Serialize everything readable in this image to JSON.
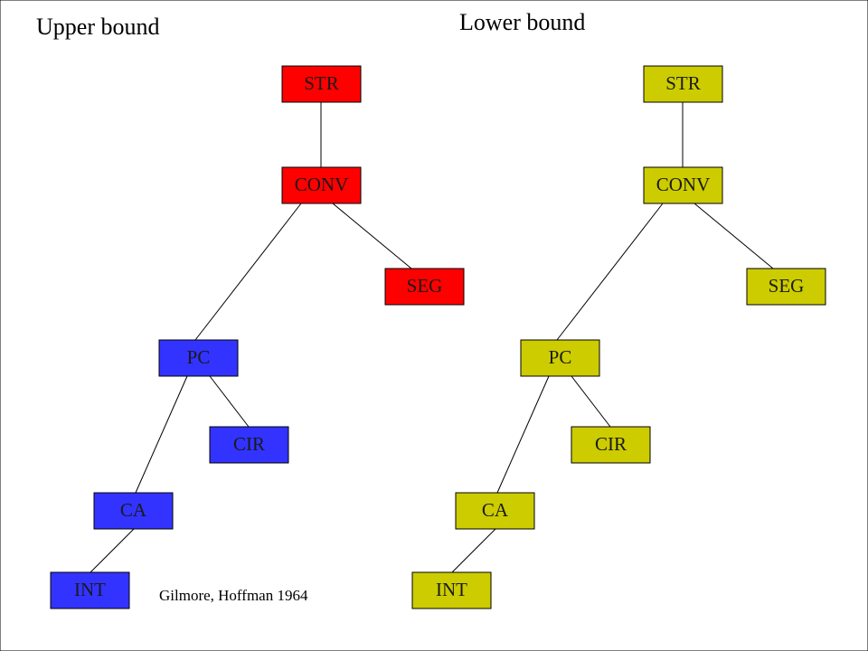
{
  "trees": [
    {
      "title": "Upper bound",
      "nodes": [
        {
          "label": "STR"
        },
        {
          "label": "CONV"
        },
        {
          "label": "SEG"
        },
        {
          "label": "PC"
        },
        {
          "label": "CIR"
        },
        {
          "label": "CA"
        },
        {
          "label": "INT"
        }
      ]
    },
    {
      "title": "Lower bound",
      "nodes": [
        {
          "label": "STR"
        },
        {
          "label": "CONV"
        },
        {
          "label": "SEG"
        },
        {
          "label": "PC"
        },
        {
          "label": "CIR"
        },
        {
          "label": "CA"
        },
        {
          "label": "INT"
        }
      ]
    }
  ],
  "citation": "Gilmore, Hoffman 1964"
}
